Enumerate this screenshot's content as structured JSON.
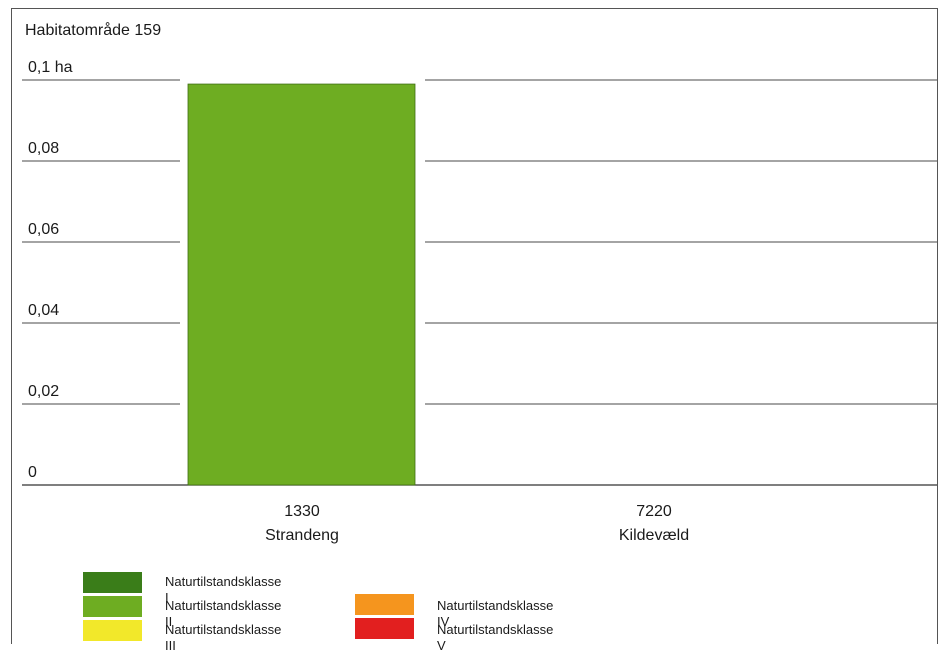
{
  "chart_data": {
    "type": "bar",
    "title": "Habitatområde 159",
    "categories": [
      {
        "code": "1330",
        "name": "Strandeng"
      },
      {
        "code": "7220",
        "name": "Kildevæld"
      }
    ],
    "series": [
      {
        "name": "Naturtilstandsklasse II",
        "color": "#6ead22",
        "values": [
          0.099,
          0
        ]
      }
    ],
    "y_ticks": [
      "0",
      "0,02",
      "0,04",
      "0,06",
      "0,08",
      "0,1 ha"
    ],
    "ylim": [
      0,
      0.1
    ],
    "grid": true
  },
  "legend": [
    {
      "label": "Naturtilstandsklasse I",
      "color": "#3a7d19"
    },
    {
      "label": "Naturtilstandsklasse II",
      "color": "#6ead22"
    },
    {
      "label": "Naturtilstandsklasse III",
      "color": "#f2e82a"
    },
    {
      "label": "Naturtilstandsklasse IV",
      "color": "#f5951e"
    },
    {
      "label": "Naturtilstandsklasse V",
      "color": "#e21f1f"
    }
  ]
}
